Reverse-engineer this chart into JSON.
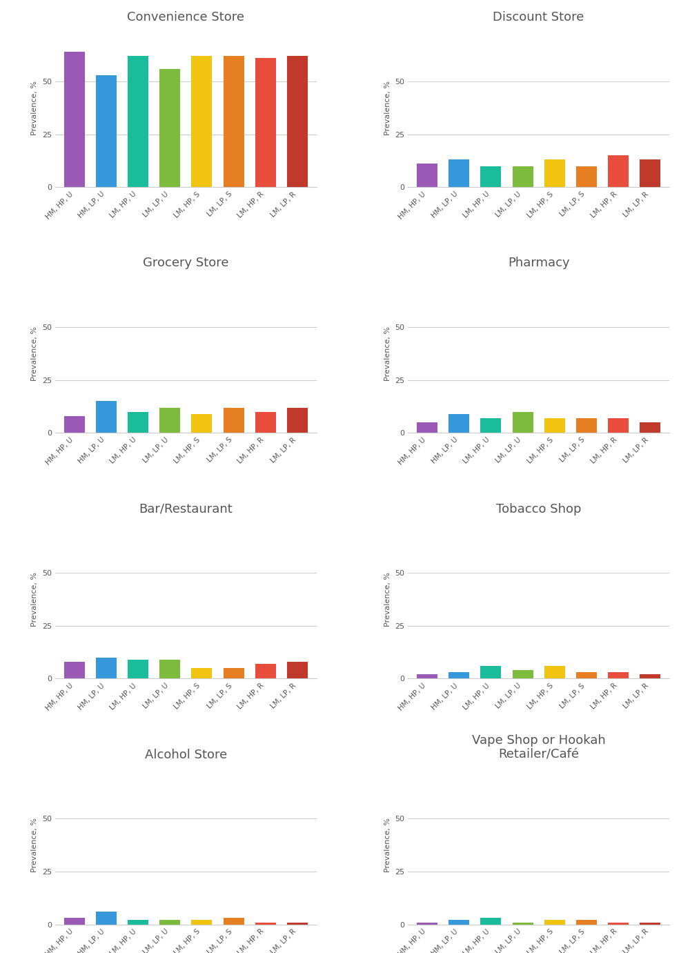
{
  "categories": [
    "HM, HP, U",
    "HM, LP, U",
    "LM, HP, U",
    "LM, LP, U",
    "LM, HP, S",
    "LM, LP, S",
    "LM, HP, R",
    "LM, LP, R"
  ],
  "bar_colors": [
    "#9b59b6",
    "#3498db",
    "#1abc9c",
    "#7dbb3c",
    "#f1c40f",
    "#e67e22",
    "#e74c3c",
    "#c0392b"
  ],
  "charts": [
    {
      "title": "Convenience Store",
      "values": [
        64,
        53,
        62,
        56,
        62,
        62,
        61,
        62
      ],
      "ylim": [
        0,
        75
      ]
    },
    {
      "title": "Discount Store",
      "values": [
        11,
        13,
        10,
        10,
        13,
        10,
        15,
        13
      ],
      "ylim": [
        0,
        75
      ]
    },
    {
      "title": "Grocery Store",
      "values": [
        8,
        15,
        10,
        12,
        9,
        12,
        10,
        12
      ],
      "ylim": [
        0,
        75
      ]
    },
    {
      "title": "Pharmacy",
      "values": [
        5,
        9,
        7,
        10,
        7,
        7,
        7,
        5
      ],
      "ylim": [
        0,
        75
      ]
    },
    {
      "title": "Bar/Restaurant",
      "values": [
        8,
        10,
        9,
        9,
        5,
        5,
        7,
        8
      ],
      "ylim": [
        0,
        75
      ]
    },
    {
      "title": "Tobacco Shop",
      "values": [
        2,
        3,
        6,
        4,
        6,
        3,
        3,
        2
      ],
      "ylim": [
        0,
        75
      ]
    },
    {
      "title": "Alcohol Store",
      "values": [
        3,
        6,
        2,
        2,
        2,
        3,
        1,
        1
      ],
      "ylim": [
        0,
        75
      ]
    },
    {
      "title": "Vape Shop or Hookah\nRetailer/Café",
      "values": [
        1,
        2,
        3,
        1,
        2,
        2,
        1,
        1
      ],
      "ylim": [
        0,
        75
      ]
    }
  ],
  "ylabel": "Prevalence, %",
  "yticks": [
    0,
    25,
    50
  ],
  "background_color": "#ffffff",
  "grid_color": "#cccccc",
  "title_color": "#555555",
  "tick_color": "#555555"
}
